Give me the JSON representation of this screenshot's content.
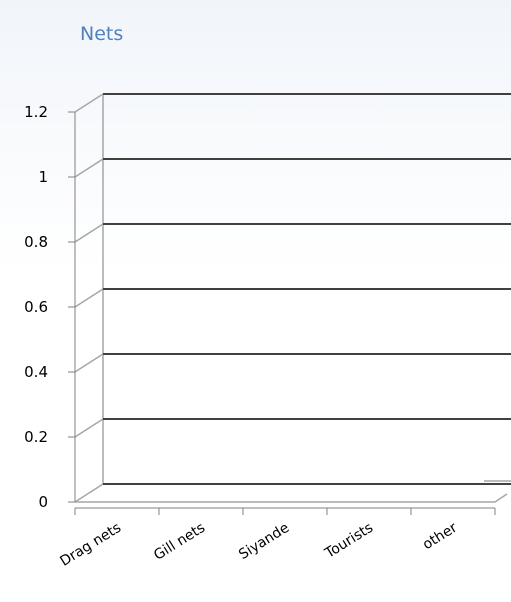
{
  "chart_data": {
    "type": "bar",
    "title": "Nets",
    "categories": [
      "Drag nets",
      "Gill nets",
      "Siyande",
      "Tourists",
      "other"
    ],
    "series": [
      {
        "values": [
          0,
          0,
          0,
          0,
          0
        ]
      }
    ],
    "ylim": [
      0,
      1.2
    ],
    "yticks": [
      "0",
      "0.2",
      "0.4",
      "0.6",
      "0.8",
      "1",
      "1.2"
    ],
    "xlabel": "",
    "ylabel": "",
    "grid": true,
    "legend": "none",
    "style": "3d",
    "colors": {
      "title": "#4f81bd",
      "grid": "#404040",
      "depth": "#a6a6a6",
      "axis": "#808080",
      "text": "#000000"
    }
  }
}
